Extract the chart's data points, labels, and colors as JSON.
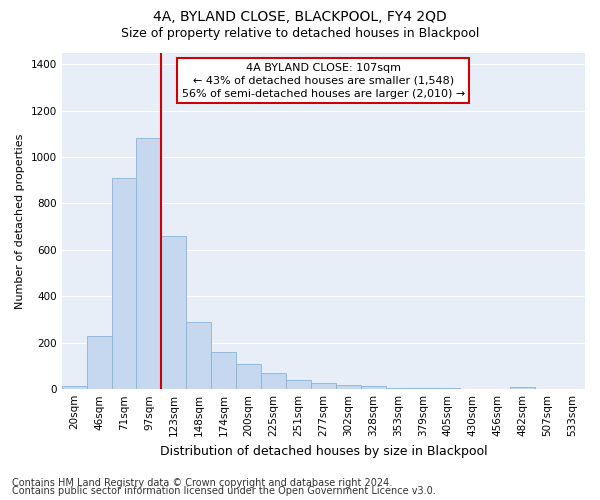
{
  "title": "4A, BYLAND CLOSE, BLACKPOOL, FY4 2QD",
  "subtitle": "Size of property relative to detached houses in Blackpool",
  "xlabel": "Distribution of detached houses by size in Blackpool",
  "ylabel": "Number of detached properties",
  "categories": [
    "20sqm",
    "46sqm",
    "71sqm",
    "97sqm",
    "123sqm",
    "148sqm",
    "174sqm",
    "200sqm",
    "225sqm",
    "251sqm",
    "277sqm",
    "302sqm",
    "328sqm",
    "353sqm",
    "379sqm",
    "405sqm",
    "430sqm",
    "456sqm",
    "482sqm",
    "507sqm",
    "533sqm"
  ],
  "values": [
    15,
    230,
    910,
    1080,
    660,
    290,
    160,
    110,
    70,
    40,
    25,
    20,
    15,
    5,
    5,
    5,
    0,
    0,
    10,
    0,
    0
  ],
  "bar_color": "#c5d8f0",
  "bar_edge_color": "#8ab4d8",
  "vline_x": 4.0,
  "vline_color": "#cc0000",
  "annotation_text": "4A BYLAND CLOSE: 107sqm\n← 43% of detached houses are smaller (1,548)\n56% of semi-detached houses are larger (2,010) →",
  "annotation_box_color": "#cc0000",
  "ylim": [
    0,
    1450
  ],
  "yticks": [
    0,
    200,
    400,
    600,
    800,
    1000,
    1200,
    1400
  ],
  "background_color": "#e8eef8",
  "footer_line1": "Contains HM Land Registry data © Crown copyright and database right 2024.",
  "footer_line2": "Contains public sector information licensed under the Open Government Licence v3.0.",
  "title_fontsize": 10,
  "subtitle_fontsize": 9,
  "xlabel_fontsize": 9,
  "ylabel_fontsize": 8,
  "tick_fontsize": 7.5,
  "annotation_fontsize": 8,
  "footer_fontsize": 7
}
